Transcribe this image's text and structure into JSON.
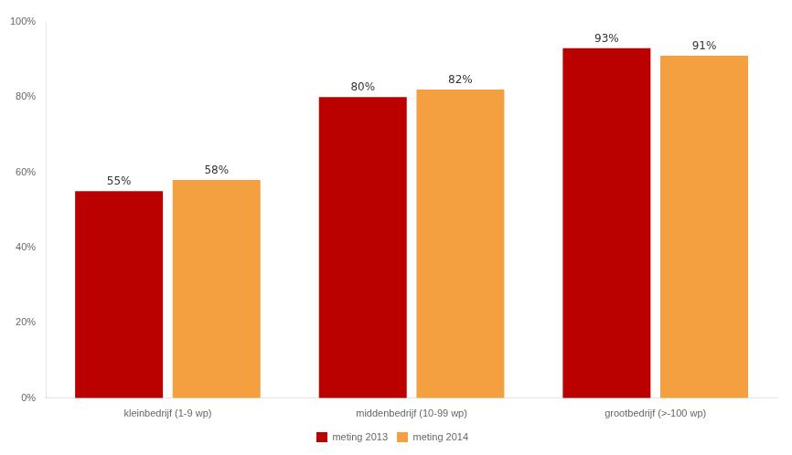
{
  "chart_data": {
    "type": "bar",
    "categories": [
      "kleinbedrijf (1-9 wp)",
      "middenbedrijf (10-99 wp)",
      "grootbedrijf (>-100 wp)"
    ],
    "series": [
      {
        "name": "meting 2013",
        "color": "#BB0000",
        "values": [
          55,
          80,
          93
        ],
        "value_labels": [
          "55%",
          "80%",
          "93%"
        ]
      },
      {
        "name": "meting 2014",
        "color": "#F5A040",
        "values": [
          58,
          82,
          91
        ],
        "value_labels": [
          "58%",
          "82%",
          "91%"
        ]
      }
    ],
    "ylim": [
      0,
      100
    ],
    "yticks": [
      {
        "value": 0,
        "label": "0%"
      },
      {
        "value": 20,
        "label": "20%"
      },
      {
        "value": 40,
        "label": "40%"
      },
      {
        "value": 60,
        "label": "60%"
      },
      {
        "value": 80,
        "label": "80%"
      },
      {
        "value": 100,
        "label": "100%"
      }
    ],
    "grid": false,
    "legend": "bottom",
    "data_labels": true
  }
}
